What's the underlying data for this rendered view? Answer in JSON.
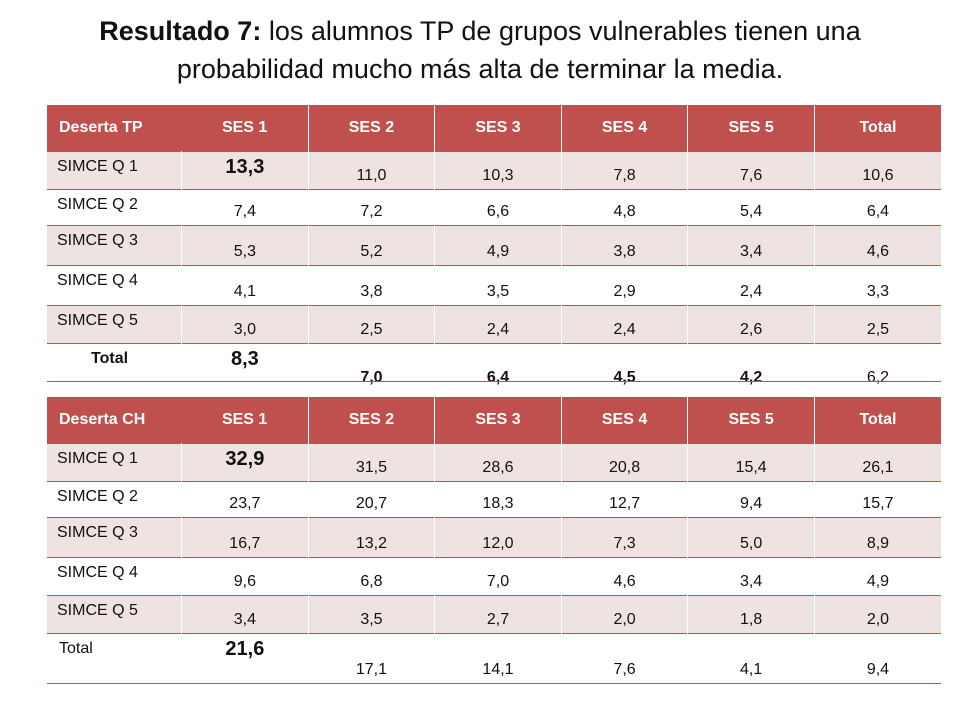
{
  "title": {
    "bold_part": "Resultado 7:",
    "rest": " los alumnos TP de grupos vulnerables tienen una probabilidad mucho más alta de terminar la media."
  },
  "tables": [
    {
      "corner": "Deserta TP",
      "headers": [
        "SES 1",
        "SES 2",
        "SES 3",
        "SES 4",
        "SES 5",
        "Total"
      ],
      "rows": [
        {
          "label": "SIMCE Q 1",
          "values": [
            "13,3",
            "11,0",
            "10,3",
            "7,8",
            "7,6",
            "10,6"
          ]
        },
        {
          "label": "SIMCE Q 2",
          "values": [
            "7,4",
            "7,2",
            "6,6",
            "4,8",
            "5,4",
            "6,4"
          ]
        },
        {
          "label": "SIMCE Q 3",
          "values": [
            "5,3",
            "5,2",
            "4,9",
            "3,8",
            "3,4",
            "4,6"
          ]
        },
        {
          "label": "SIMCE Q 4",
          "values": [
            "4,1",
            "3,8",
            "3,5",
            "2,9",
            "2,4",
            "3,3"
          ]
        },
        {
          "label": "SIMCE Q 5",
          "values": [
            "3,0",
            "2,5",
            "2,4",
            "2,4",
            "2,6",
            "2,5"
          ]
        },
        {
          "label": "Total",
          "values": [
            "8,3",
            "7,0",
            "6,4",
            "4,5",
            "4,2",
            "6,2"
          ]
        }
      ]
    },
    {
      "corner": "Deserta CH",
      "headers": [
        "SES 1",
        "SES 2",
        "SES 3",
        "SES 4",
        "SES 5",
        "Total"
      ],
      "rows": [
        {
          "label": "SIMCE Q 1",
          "values": [
            "32,9",
            "31,5",
            "28,6",
            "20,8",
            "15,4",
            "26,1"
          ]
        },
        {
          "label": "SIMCE Q 2",
          "values": [
            "23,7",
            "20,7",
            "18,3",
            "12,7",
            "9,4",
            "15,7"
          ]
        },
        {
          "label": "SIMCE Q 3",
          "values": [
            "16,7",
            "13,2",
            "12,0",
            "7,3",
            "5,0",
            "8,9"
          ]
        },
        {
          "label": "SIMCE Q 4",
          "values": [
            "9,6",
            "6,8",
            "7,0",
            "4,6",
            "3,4",
            "4,9"
          ]
        },
        {
          "label": "SIMCE Q 5",
          "values": [
            "3,4",
            "3,5",
            "2,7",
            "2,0",
            "1,8",
            "2,0"
          ]
        },
        {
          "label": "Total",
          "values": [
            "21,6",
            "17,1",
            "14,1",
            "7,6",
            "4,1",
            "9,4"
          ]
        }
      ]
    }
  ],
  "colors": {
    "header_bg": "#c0504d",
    "alt_row_bg": "#efe2e3"
  }
}
